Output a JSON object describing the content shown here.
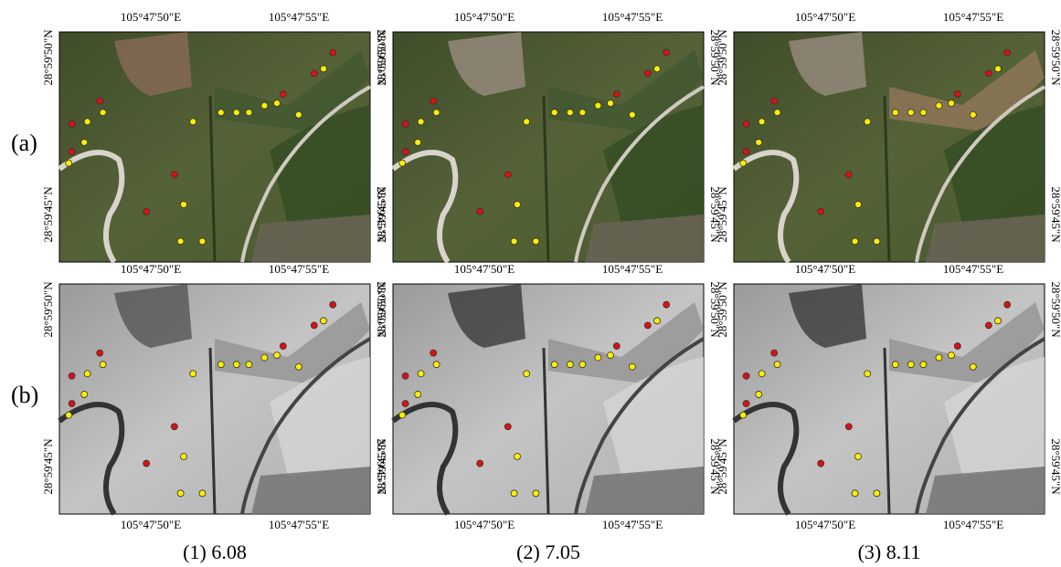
{
  "row_labels": [
    "(a)",
    "(b)"
  ],
  "column_captions": [
    "(1)  6.08",
    "(2)  7.05",
    "(3)  8.11"
  ],
  "coordinates": {
    "longitude": [
      "105°47'50\"E",
      "105°47'55\"E"
    ],
    "latitude": [
      "28°59'50\"N",
      "28°59'45\"N"
    ]
  }
}
